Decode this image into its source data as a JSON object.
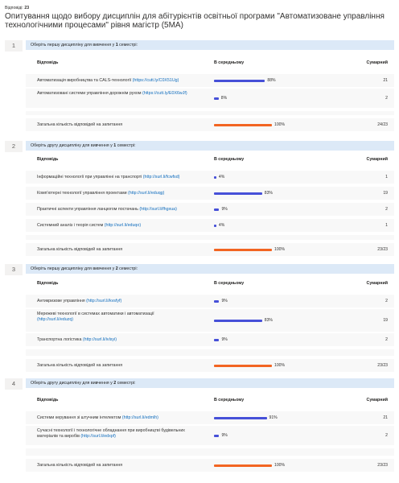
{
  "response_label": "Відповіді:",
  "response_count": "23",
  "title": "Опитування щодо вибору дисциплін для абітурієнтів освітньої програми \"Автоматизоване управління технологічними процесами\" рівня магістр (5МА)",
  "columns": {
    "answer": "Відповідь",
    "average": "В середньому",
    "total": "Сумарний"
  },
  "total_label": "Загальна кількість відповідей на запитання",
  "colors": {
    "bar": "#4650d8",
    "total_bar": "#f26522",
    "question_header": "#dce9f7"
  },
  "questions": [
    {
      "number": "1",
      "header_pre": "Оберіть першу дисципліну для вивчення у ",
      "header_bold": "1",
      "header_post": " семестрі:",
      "rows": [
        {
          "label": "Автоматизація виробництва та CALS-технології ",
          "link": "(https://surl.lt/crfcbn)",
          "link_text": "(https://cutt.ly/C0X51Ug)",
          "percent": 88,
          "pct_label": "88%",
          "count": "21"
        },
        {
          "label": "Автоматизовані системи управління дорожнім рухом ",
          "link_text": "(https://cutt.ly/E0X6wJf)",
          "percent": 8,
          "pct_label": "8%",
          "count": "2"
        }
      ],
      "total_percent": 100,
      "total_pct_label": "100%",
      "total_count": "24/23"
    },
    {
      "number": "2",
      "header_pre": "Оберіть другу дисципліну для вивчення  у ",
      "header_bold": "1",
      "header_post": " семестрі:",
      "rows": [
        {
          "label": "Інформаційні технології при управлінні на транспорті ",
          "link_text": "(http://surl.li/fcwfsd)",
          "percent": 4,
          "pct_label": "4%",
          "count": "1"
        },
        {
          "label": "Комп'ютерні технології управління проектами ",
          "link_text": "(http://surl.li/eduqg)",
          "percent": 83,
          "pct_label": "83%",
          "count": "19"
        },
        {
          "label": "Практичні аспекти управління ланцюгом постачань ",
          "link_text": "(http://surl.li/fhgxua)",
          "percent": 9,
          "pct_label": "9%",
          "count": "2"
        },
        {
          "label": "Системний аналіз і теорія систем ",
          "link_text": "(http://surl.li/eduqo)",
          "percent": 4,
          "pct_label": "4%",
          "count": "1"
        }
      ],
      "total_percent": 100,
      "total_pct_label": "100%",
      "total_count": "23/23"
    },
    {
      "number": "3",
      "header_pre": "Оберіть першу дисципліну для вивчення  у ",
      "header_bold": "2",
      "header_post": " семестрі:",
      "rows": [
        {
          "label": "Антикризове управління ",
          "link_text": "(http://surl.li/kvsfyf)",
          "percent": 9,
          "pct_label": "9%",
          "count": "2"
        },
        {
          "label": "Мережеві технології в системах автоматики і автоматизації ",
          "label2": "(http://surl.li/eduzq)",
          "link_text": "",
          "percent": 83,
          "pct_label": "83%",
          "count": "19"
        },
        {
          "label": "Транспортна логістика ",
          "link_text": "(http://surl.li/ivlsyi)",
          "percent": 9,
          "pct_label": "9%",
          "count": "2"
        }
      ],
      "total_percent": 100,
      "total_pct_label": "100%",
      "total_count": "23/23"
    },
    {
      "number": "4",
      "header_pre": "Оберіть другу дисципліну для вивчення  у ",
      "header_bold": "2",
      "header_post": " семестрі:",
      "rows": [
        {
          "label": "Системи керування зі штучним інтелектом ",
          "link_text": "(http://surl.li/edmlh)",
          "percent": 91,
          "pct_label": "91%",
          "count": "21"
        },
        {
          "label": "Сучасні технології і технологічне обладнання при виробництві будівельних",
          "label2": "матеріалів та виробів ",
          "link_text": "(http://surl.li/edxpf)",
          "percent": 9,
          "pct_label": "9%",
          "count": "2"
        }
      ],
      "total_percent": 100,
      "total_pct_label": "100%",
      "total_count": "23/23"
    }
  ]
}
